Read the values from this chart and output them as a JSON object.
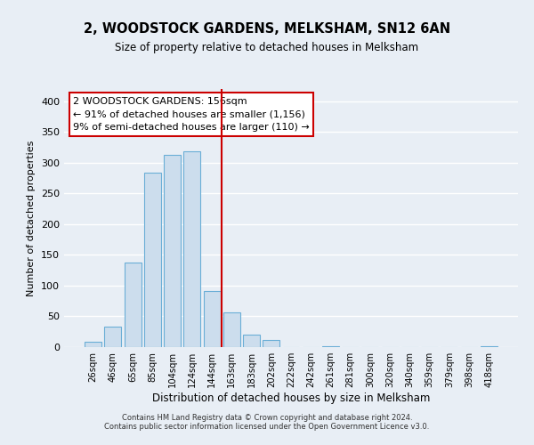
{
  "title": "2, WOODSTOCK GARDENS, MELKSHAM, SN12 6AN",
  "subtitle": "Size of property relative to detached houses in Melksham",
  "xlabel": "Distribution of detached houses by size in Melksham",
  "ylabel": "Number of detached properties",
  "bar_labels": [
    "26sqm",
    "46sqm",
    "65sqm",
    "85sqm",
    "104sqm",
    "124sqm",
    "144sqm",
    "163sqm",
    "183sqm",
    "202sqm",
    "222sqm",
    "242sqm",
    "261sqm",
    "281sqm",
    "300sqm",
    "320sqm",
    "340sqm",
    "359sqm",
    "379sqm",
    "398sqm",
    "418sqm"
  ],
  "bar_values": [
    8,
    34,
    138,
    284,
    313,
    318,
    91,
    57,
    20,
    11,
    0,
    0,
    2,
    0,
    0,
    0,
    0,
    0,
    0,
    0,
    2
  ],
  "bar_color": "#ccdded",
  "bar_edge_color": "#6aaed6",
  "vline_color": "#cc0000",
  "annotation_line1": "2 WOODSTOCK GARDENS: 156sqm",
  "annotation_line2": "← 91% of detached houses are smaller (1,156)",
  "annotation_line3": "9% of semi-detached houses are larger (110) →",
  "annotation_box_color": "#ffffff",
  "annotation_box_edge": "#cc0000",
  "ylim": [
    0,
    420
  ],
  "yticks": [
    0,
    50,
    100,
    150,
    200,
    250,
    300,
    350,
    400
  ],
  "footer1": "Contains HM Land Registry data © Crown copyright and database right 2024.",
  "footer2": "Contains public sector information licensed under the Open Government Licence v3.0.",
  "bg_color": "#e8eef5",
  "plot_bg_color": "#e8eef5"
}
